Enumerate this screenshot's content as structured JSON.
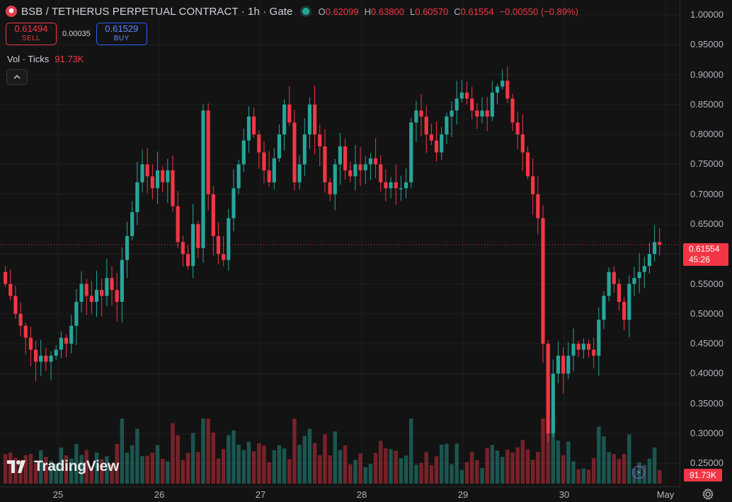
{
  "header": {
    "title": "BSB / TETHERUS PERPETUAL CONTRACT · 1h · Gate",
    "ohlc": [
      {
        "key": "O",
        "value": "0.62099"
      },
      {
        "key": "H",
        "value": "0.63800"
      },
      {
        "key": "L",
        "value": "0.60570"
      },
      {
        "key": "C",
        "value": "0.61554"
      }
    ],
    "change": "−0.00550 (−0.89%)"
  },
  "trade": {
    "sell_price": "0.61494",
    "sell_label": "SELL",
    "spread": "0.00035",
    "buy_price": "0.61529",
    "buy_label": "BUY"
  },
  "volume_legend": {
    "label": "Vol · Ticks",
    "value": "91.73K"
  },
  "price_badge": {
    "price": "0.61554",
    "countdown": "45:26"
  },
  "volume_badge": "91.73K",
  "watermark": "TradingView",
  "icons": {
    "symbol": "bsb-logo-icon",
    "status": "market-open-dot-icon",
    "collapse": "chevron-up-icon",
    "bolt": "lightning-icon",
    "settings": "gear-icon"
  },
  "colors": {
    "up": "#26a69a",
    "down": "#f23645",
    "background": "#131313",
    "buy": "#2962ff"
  },
  "chart_data": {
    "type": "candlestick",
    "interval": "1h",
    "price_axis": {
      "ticks": [
        "1.00000",
        "0.95000",
        "0.90000",
        "0.85000",
        "0.80000",
        "0.75000",
        "0.70000",
        "0.65000",
        "0.60000",
        "0.55000",
        "0.50000",
        "0.45000",
        "0.40000",
        "0.35000",
        "0.30000",
        "0.25000"
      ],
      "range": [
        0.235,
        1.013
      ]
    },
    "time_axis": [
      "25",
      "26",
      "27",
      "28",
      "29",
      "30",
      "May"
    ],
    "grid": true,
    "last_price": 0.61554,
    "approx_path": [
      [
        0,
        0.55
      ],
      [
        1,
        0.53
      ],
      [
        2,
        0.5
      ],
      [
        3,
        0.48
      ],
      [
        4,
        0.46
      ],
      [
        5,
        0.44
      ],
      [
        6,
        0.42
      ],
      [
        7,
        0.43
      ],
      [
        8,
        0.42
      ],
      [
        9,
        0.43
      ],
      [
        10,
        0.44
      ],
      [
        11,
        0.46
      ],
      [
        12,
        0.45
      ],
      [
        13,
        0.48
      ],
      [
        14,
        0.52
      ],
      [
        15,
        0.55
      ],
      [
        16,
        0.53
      ],
      [
        17,
        0.52
      ],
      [
        18,
        0.54
      ],
      [
        19,
        0.53
      ],
      [
        20,
        0.56
      ],
      [
        21,
        0.54
      ],
      [
        22,
        0.52
      ],
      [
        23,
        0.59
      ],
      [
        24,
        0.63
      ],
      [
        25,
        0.67
      ],
      [
        26,
        0.72
      ],
      [
        27,
        0.75
      ],
      [
        28,
        0.73
      ],
      [
        29,
        0.71
      ],
      [
        30,
        0.74
      ],
      [
        31,
        0.72
      ],
      [
        32,
        0.74
      ],
      [
        33,
        0.68
      ],
      [
        34,
        0.62
      ],
      [
        35,
        0.6
      ],
      [
        36,
        0.58
      ],
      [
        37,
        0.65
      ],
      [
        38,
        0.61
      ],
      [
        39,
        0.84
      ],
      [
        40,
        0.7
      ],
      [
        41,
        0.63
      ],
      [
        42,
        0.6
      ],
      [
        43,
        0.59
      ],
      [
        44,
        0.66
      ],
      [
        45,
        0.71
      ],
      [
        46,
        0.75
      ],
      [
        47,
        0.79
      ],
      [
        48,
        0.83
      ],
      [
        49,
        0.8
      ],
      [
        50,
        0.77
      ],
      [
        51,
        0.74
      ],
      [
        52,
        0.72
      ],
      [
        53,
        0.76
      ],
      [
        54,
        0.8
      ],
      [
        55,
        0.85
      ],
      [
        56,
        0.82
      ],
      [
        57,
        0.72
      ],
      [
        58,
        0.75
      ],
      [
        59,
        0.8
      ],
      [
        60,
        0.85
      ],
      [
        61,
        0.8
      ],
      [
        62,
        0.78
      ],
      [
        63,
        0.72
      ],
      [
        64,
        0.7
      ],
      [
        65,
        0.75
      ],
      [
        66,
        0.78
      ],
      [
        67,
        0.74
      ],
      [
        68,
        0.73
      ],
      [
        69,
        0.75
      ],
      [
        70,
        0.74
      ],
      [
        71,
        0.75
      ],
      [
        72,
        0.76
      ],
      [
        73,
        0.75
      ],
      [
        74,
        0.72
      ],
      [
        75,
        0.71
      ],
      [
        76,
        0.72
      ],
      [
        77,
        0.71
      ],
      [
        78,
        0.71
      ],
      [
        79,
        0.72
      ],
      [
        80,
        0.82
      ],
      [
        81,
        0.84
      ],
      [
        82,
        0.83
      ],
      [
        83,
        0.8
      ],
      [
        84,
        0.79
      ],
      [
        85,
        0.77
      ],
      [
        86,
        0.8
      ],
      [
        87,
        0.83
      ],
      [
        88,
        0.84
      ],
      [
        89,
        0.86
      ],
      [
        90,
        0.87
      ],
      [
        91,
        0.86
      ],
      [
        92,
        0.84
      ],
      [
        93,
        0.83
      ],
      [
        94,
        0.84
      ],
      [
        95,
        0.83
      ],
      [
        96,
        0.87
      ],
      [
        97,
        0.88
      ],
      [
        98,
        0.89
      ],
      [
        99,
        0.86
      ],
      [
        100,
        0.82
      ],
      [
        101,
        0.8
      ],
      [
        102,
        0.77
      ],
      [
        103,
        0.73
      ],
      [
        104,
        0.7
      ],
      [
        105,
        0.66
      ],
      [
        106,
        0.45
      ],
      [
        107,
        0.3
      ],
      [
        108,
        0.4
      ],
      [
        109,
        0.43
      ],
      [
        110,
        0.4
      ],
      [
        111,
        0.43
      ],
      [
        112,
        0.45
      ],
      [
        113,
        0.44
      ],
      [
        114,
        0.45
      ],
      [
        115,
        0.44
      ],
      [
        116,
        0.43
      ],
      [
        117,
        0.49
      ],
      [
        118,
        0.53
      ],
      [
        119,
        0.57
      ],
      [
        120,
        0.55
      ],
      [
        121,
        0.52
      ],
      [
        122,
        0.49
      ],
      [
        123,
        0.55
      ],
      [
        124,
        0.56
      ],
      [
        125,
        0.57
      ],
      [
        126,
        0.58
      ],
      [
        127,
        0.6
      ],
      [
        128,
        0.62
      ],
      [
        129,
        0.6155
      ]
    ]
  }
}
